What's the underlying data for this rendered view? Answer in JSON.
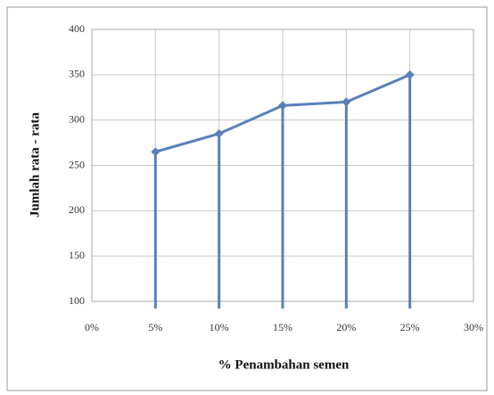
{
  "chart_data": {
    "type": "line",
    "x_label": "% Penambahan semen",
    "y_label": "Jumlah  rata - rata",
    "x": [
      5,
      10,
      15,
      20,
      25
    ],
    "series": [
      {
        "name": "Jumlah rata - rata",
        "color": "#5a80b8",
        "values": [
          265,
          285,
          316,
          320,
          350
        ]
      }
    ],
    "xlim": [
      0,
      30
    ],
    "xticks": [
      {
        "value": 0,
        "label": "0%"
      },
      {
        "value": 5,
        "label": "5%"
      },
      {
        "value": 10,
        "label": "10%"
      },
      {
        "value": 15,
        "label": "15%"
      },
      {
        "value": 20,
        "label": "20%"
      },
      {
        "value": 25,
        "label": "25%"
      },
      {
        "value": 30,
        "label": "30%"
      }
    ],
    "ylim": [
      100,
      400
    ],
    "yticks": [
      100,
      150,
      200,
      250,
      300,
      350,
      400
    ],
    "grid": true,
    "drop_lines": true
  }
}
